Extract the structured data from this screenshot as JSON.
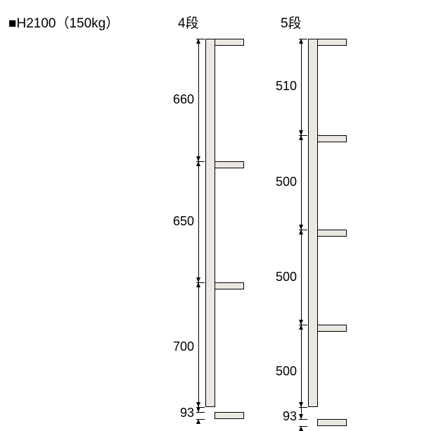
{
  "title": "■H2100（150kg）",
  "geometry": {
    "pxPerMm": 0.249,
    "topY": 55,
    "shelfThicknessMm": 40,
    "postWidthPx": 14,
    "shelfOverhangPx": 42,
    "postFill": "#ebe8e3",
    "stroke": "#000000",
    "extLineLen": 12,
    "dimLineOffset": 10,
    "arrowSize": 7,
    "labelOffsetX": 56,
    "labelFontSize": 18
  },
  "columns": {
    "a": {
      "label": "4段",
      "postLeft": 292,
      "totalMm": 2100,
      "gapsMm": [
        660,
        650,
        700
      ],
      "footMm": 93
    },
    "b": {
      "label": "5段",
      "postLeft": 438,
      "totalMm": 2100,
      "gapsMm": [
        510,
        500,
        500,
        500
      ],
      "footMm": 93
    }
  }
}
